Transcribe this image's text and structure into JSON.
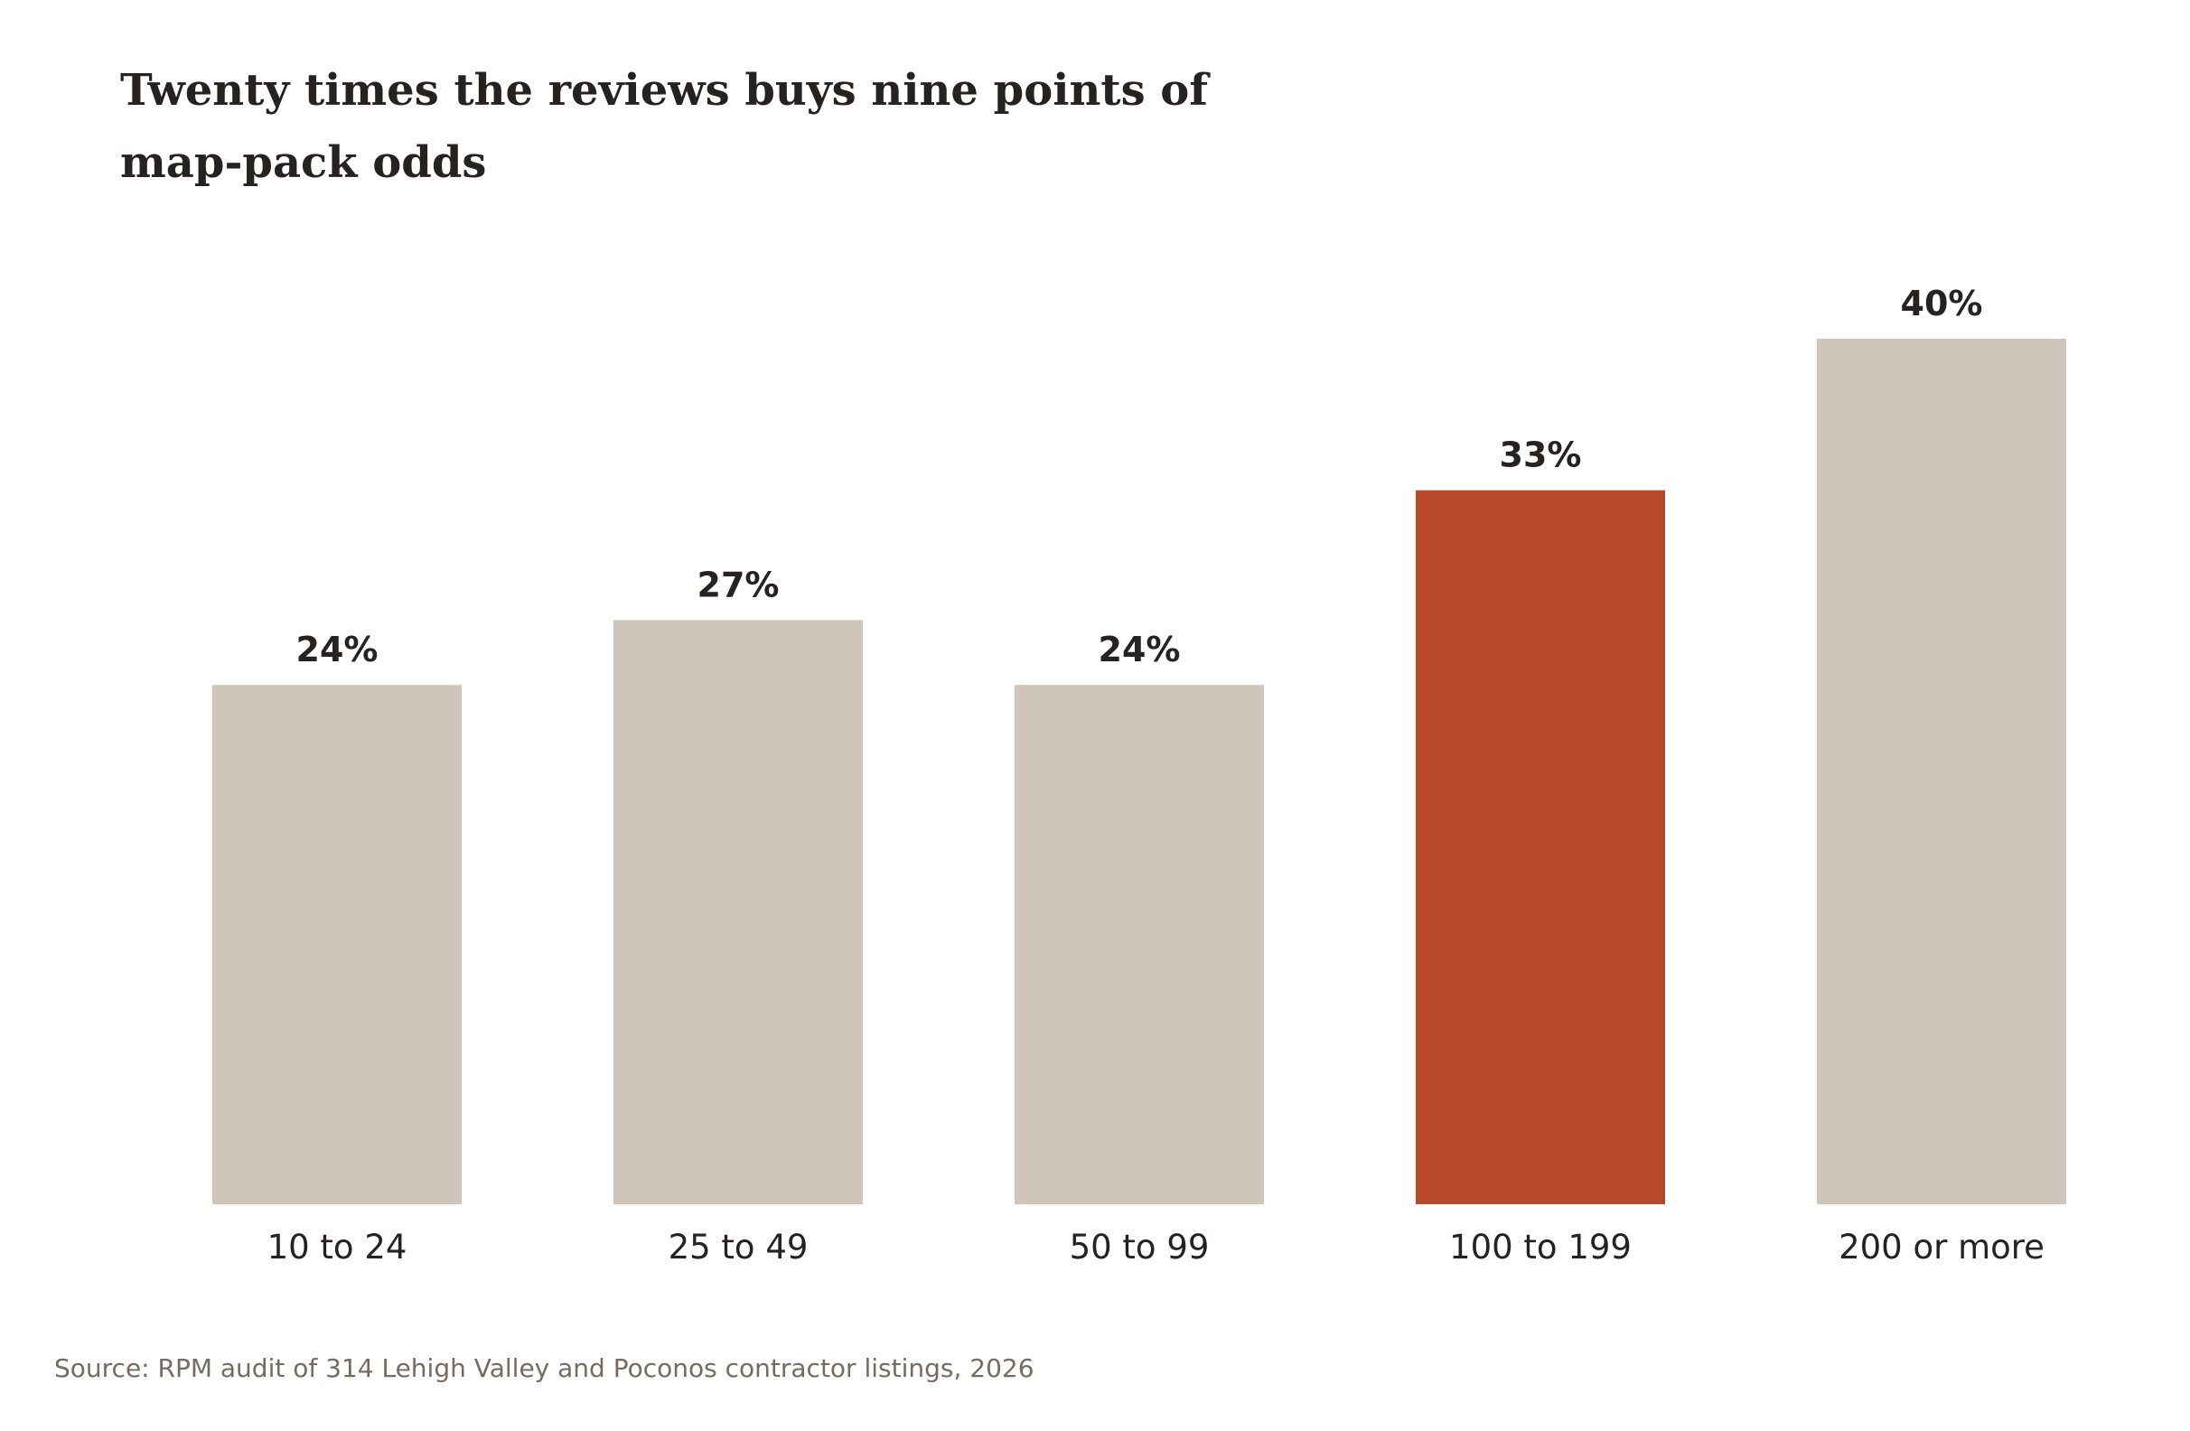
{
  "chart_data": {
    "type": "bar",
    "title": "Twenty times the reviews buys nine points of map-pack odds",
    "categories": [
      "10 to 24",
      "25 to 49",
      "50 to 99",
      "100 to 199",
      "200 or more"
    ],
    "values": [
      24,
      27,
      24,
      33,
      40
    ],
    "value_labels": [
      "24%",
      "27%",
      "24%",
      "33%",
      "40%"
    ],
    "highlight_index": 3,
    "xlabel": "",
    "ylabel": "",
    "ylim": [
      0,
      40
    ],
    "grid": false,
    "legend": "none",
    "colors": {
      "bar": "#d0c5bb",
      "highlight": "#b8482a"
    }
  },
  "source": "Source: RPM audit of 314 Lehigh Valley and Poconos contractor listings, 2026"
}
